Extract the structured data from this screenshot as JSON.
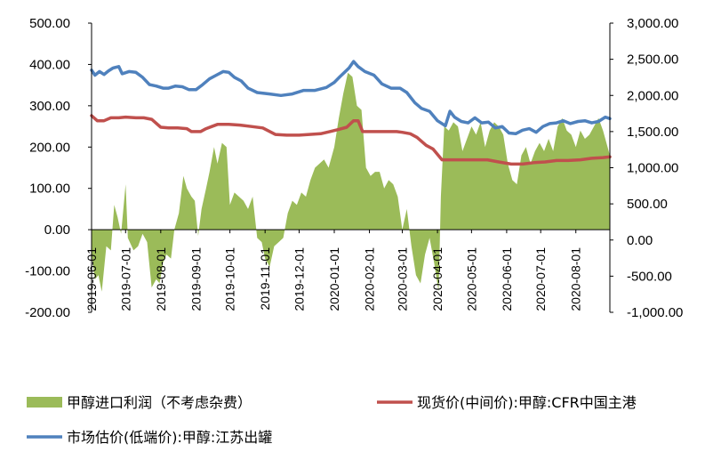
{
  "chart_data": {
    "type": "bar",
    "title": "",
    "x_tick_labels": [
      "2019-06-01",
      "2019-07-01",
      "2019-08-01",
      "2019-09-01",
      "2019-10-01",
      "2019-11-01",
      "2019-12-01",
      "2020-01-01",
      "2020-02-01",
      "2020-03-01",
      "2020-04-01",
      "2020-05-01",
      "2020-06-01",
      "2020-07-01",
      "2020-08-01"
    ],
    "x_range": [
      "2019-06-01",
      "2020-08-31"
    ],
    "y_left": {
      "range": [
        -200,
        500
      ],
      "ticks": [
        "500.00",
        "400.00",
        "300.00",
        "200.00",
        "100.00",
        "0.00",
        "-100.00",
        "-200.00"
      ]
    },
    "y_right": {
      "range": [
        -1000,
        3000
      ],
      "ticks": [
        "3,000.00",
        "2,500.00",
        "2,000.00",
        "1,500.00",
        "1,000.00",
        "500.00",
        "0.00",
        "-500.00",
        "-1,000.00"
      ]
    },
    "grid": false,
    "legend_position": "bottom",
    "series": [
      {
        "name": "甲醇进口利润（不考虑杂费）",
        "type": "area",
        "axis": "left",
        "color": "#9BBB59",
        "points": [
          [
            "2019-06-01",
            -60
          ],
          [
            "2019-06-04",
            -120
          ],
          [
            "2019-06-07",
            -110
          ],
          [
            "2019-06-10",
            -150
          ],
          [
            "2019-06-14",
            -40
          ],
          [
            "2019-06-18",
            -50
          ],
          [
            "2019-06-21",
            60
          ],
          [
            "2019-06-24",
            30
          ],
          [
            "2019-06-27",
            -10
          ],
          [
            "2019-07-01",
            110
          ],
          [
            "2019-07-03",
            -20
          ],
          [
            "2019-07-08",
            -50
          ],
          [
            "2019-07-12",
            -40
          ],
          [
            "2019-07-16",
            -10
          ],
          [
            "2019-07-20",
            -30
          ],
          [
            "2019-07-24",
            -140
          ],
          [
            "2019-07-28",
            -120
          ],
          [
            "2019-07-31",
            -130
          ],
          [
            "2019-08-03",
            -80
          ],
          [
            "2019-08-06",
            -60
          ],
          [
            "2019-08-10",
            -70
          ],
          [
            "2019-08-13",
            0
          ],
          [
            "2019-08-17",
            40
          ],
          [
            "2019-08-21",
            130
          ],
          [
            "2019-08-24",
            100
          ],
          [
            "2019-08-28",
            80
          ],
          [
            "2019-08-31",
            70
          ],
          [
            "2019-09-03",
            -15
          ],
          [
            "2019-09-06",
            50
          ],
          [
            "2019-09-10",
            100
          ],
          [
            "2019-09-13",
            140
          ],
          [
            "2019-09-17",
            200
          ],
          [
            "2019-09-20",
            160
          ],
          [
            "2019-09-24",
            210
          ],
          [
            "2019-09-28",
            200
          ],
          [
            "2019-10-01",
            60
          ],
          [
            "2019-10-05",
            90
          ],
          [
            "2019-10-09",
            80
          ],
          [
            "2019-10-13",
            70
          ],
          [
            "2019-10-17",
            50
          ],
          [
            "2019-10-21",
            80
          ],
          [
            "2019-10-25",
            -20
          ],
          [
            "2019-10-29",
            -30
          ],
          [
            "2019-11-01",
            -70
          ],
          [
            "2019-11-05",
            -90
          ],
          [
            "2019-11-09",
            -40
          ],
          [
            "2019-11-13",
            -30
          ],
          [
            "2019-11-17",
            -20
          ],
          [
            "2019-11-21",
            40
          ],
          [
            "2019-11-25",
            70
          ],
          [
            "2019-11-29",
            60
          ],
          [
            "2019-12-03",
            90
          ],
          [
            "2019-12-07",
            80
          ],
          [
            "2019-12-11",
            120
          ],
          [
            "2019-12-15",
            150
          ],
          [
            "2019-12-19",
            160
          ],
          [
            "2019-12-23",
            170
          ],
          [
            "2019-12-27",
            150
          ],
          [
            "2020-01-01",
            200
          ],
          [
            "2020-01-05",
            270
          ],
          [
            "2020-01-09",
            330
          ],
          [
            "2020-01-13",
            380
          ],
          [
            "2020-01-17",
            370
          ],
          [
            "2020-01-21",
            300
          ],
          [
            "2020-01-25",
            290
          ],
          [
            "2020-01-29",
            150
          ],
          [
            "2020-02-02",
            130
          ],
          [
            "2020-02-06",
            140
          ],
          [
            "2020-02-10",
            140
          ],
          [
            "2020-02-14",
            100
          ],
          [
            "2020-02-18",
            120
          ],
          [
            "2020-02-22",
            110
          ],
          [
            "2020-02-26",
            80
          ],
          [
            "2020-03-01",
            0
          ],
          [
            "2020-03-05",
            50
          ],
          [
            "2020-03-09",
            -40
          ],
          [
            "2020-03-13",
            -110
          ],
          [
            "2020-03-17",
            -130
          ],
          [
            "2020-03-21",
            -60
          ],
          [
            "2020-03-25",
            -20
          ],
          [
            "2020-03-29",
            -80
          ],
          [
            "2020-04-02",
            -150
          ],
          [
            "2020-04-04",
            80
          ],
          [
            "2020-04-07",
            250
          ],
          [
            "2020-04-11",
            240
          ],
          [
            "2020-04-15",
            260
          ],
          [
            "2020-04-19",
            250
          ],
          [
            "2020-04-23",
            190
          ],
          [
            "2020-04-27",
            220
          ],
          [
            "2020-05-01",
            250
          ],
          [
            "2020-05-05",
            230
          ],
          [
            "2020-05-09",
            260
          ],
          [
            "2020-05-13",
            200
          ],
          [
            "2020-05-17",
            240
          ],
          [
            "2020-05-21",
            260
          ],
          [
            "2020-05-25",
            250
          ],
          [
            "2020-05-29",
            230
          ],
          [
            "2020-06-02",
            160
          ],
          [
            "2020-06-06",
            120
          ],
          [
            "2020-06-10",
            110
          ],
          [
            "2020-06-14",
            180
          ],
          [
            "2020-06-18",
            200
          ],
          [
            "2020-06-22",
            160
          ],
          [
            "2020-06-26",
            190
          ],
          [
            "2020-06-30",
            210
          ],
          [
            "2020-07-04",
            190
          ],
          [
            "2020-07-08",
            220
          ],
          [
            "2020-07-12",
            190
          ],
          [
            "2020-07-16",
            250
          ],
          [
            "2020-07-20",
            270
          ],
          [
            "2020-07-24",
            240
          ],
          [
            "2020-07-28",
            230
          ],
          [
            "2020-08-01",
            200
          ],
          [
            "2020-08-05",
            240
          ],
          [
            "2020-08-09",
            220
          ],
          [
            "2020-08-13",
            230
          ],
          [
            "2020-08-17",
            250
          ],
          [
            "2020-08-21",
            270
          ],
          [
            "2020-08-25",
            240
          ],
          [
            "2020-08-31",
            180
          ]
        ]
      },
      {
        "name": "现货价(中间价):甲醇:CFR中国主港",
        "type": "line",
        "axis": "right",
        "color": "#C0504D",
        "points": [
          [
            "2019-06-01",
            1720
          ],
          [
            "2019-06-06",
            1650
          ],
          [
            "2019-06-12",
            1650
          ],
          [
            "2019-06-18",
            1690
          ],
          [
            "2019-06-25",
            1690
          ],
          [
            "2019-07-01",
            1700
          ],
          [
            "2019-07-10",
            1690
          ],
          [
            "2019-07-17",
            1690
          ],
          [
            "2019-07-24",
            1670
          ],
          [
            "2019-08-01",
            1560
          ],
          [
            "2019-08-08",
            1550
          ],
          [
            "2019-08-16",
            1550
          ],
          [
            "2019-08-24",
            1540
          ],
          [
            "2019-08-28",
            1500
          ],
          [
            "2019-09-05",
            1500
          ],
          [
            "2019-09-10",
            1540
          ],
          [
            "2019-09-15",
            1570
          ],
          [
            "2019-09-20",
            1600
          ],
          [
            "2019-09-30",
            1600
          ],
          [
            "2019-10-10",
            1590
          ],
          [
            "2019-10-20",
            1570
          ],
          [
            "2019-10-30",
            1550
          ],
          [
            "2019-11-10",
            1460
          ],
          [
            "2019-11-20",
            1450
          ],
          [
            "2019-12-01",
            1450
          ],
          [
            "2019-12-10",
            1460
          ],
          [
            "2019-12-20",
            1470
          ],
          [
            "2019-12-28",
            1500
          ],
          [
            "2020-01-05",
            1530
          ],
          [
            "2020-01-12",
            1560
          ],
          [
            "2020-01-18",
            1650
          ],
          [
            "2020-01-22",
            1650
          ],
          [
            "2020-01-26",
            1500
          ],
          [
            "2020-02-05",
            1500
          ],
          [
            "2020-02-15",
            1500
          ],
          [
            "2020-02-25",
            1500
          ],
          [
            "2020-03-01",
            1490
          ],
          [
            "2020-03-08",
            1470
          ],
          [
            "2020-03-14",
            1420
          ],
          [
            "2020-03-22",
            1310
          ],
          [
            "2020-03-28",
            1260
          ],
          [
            "2020-04-05",
            1110
          ],
          [
            "2020-04-15",
            1110
          ],
          [
            "2020-04-25",
            1110
          ],
          [
            "2020-05-05",
            1110
          ],
          [
            "2020-05-15",
            1110
          ],
          [
            "2020-05-25",
            1080
          ],
          [
            "2020-06-05",
            1050
          ],
          [
            "2020-06-15",
            1050
          ],
          [
            "2020-06-25",
            1070
          ],
          [
            "2020-07-05",
            1080
          ],
          [
            "2020-07-15",
            1100
          ],
          [
            "2020-07-25",
            1100
          ],
          [
            "2020-08-05",
            1110
          ],
          [
            "2020-08-15",
            1130
          ],
          [
            "2020-08-25",
            1140
          ],
          [
            "2020-08-31",
            1150
          ]
        ]
      },
      {
        "name": "市场估价(低端价):甲醇:江苏出罐",
        "type": "line",
        "axis": "right",
        "color": "#4F81BD",
        "points": [
          [
            "2019-06-01",
            2350
          ],
          [
            "2019-06-04",
            2280
          ],
          [
            "2019-06-08",
            2330
          ],
          [
            "2019-06-12",
            2290
          ],
          [
            "2019-06-16",
            2340
          ],
          [
            "2019-06-20",
            2380
          ],
          [
            "2019-06-25",
            2400
          ],
          [
            "2019-06-28",
            2300
          ],
          [
            "2019-07-04",
            2330
          ],
          [
            "2019-07-10",
            2320
          ],
          [
            "2019-07-16",
            2250
          ],
          [
            "2019-07-22",
            2150
          ],
          [
            "2019-07-28",
            2130
          ],
          [
            "2019-08-03",
            2100
          ],
          [
            "2019-08-08",
            2100
          ],
          [
            "2019-08-14",
            2130
          ],
          [
            "2019-08-20",
            2120
          ],
          [
            "2019-08-26",
            2080
          ],
          [
            "2019-09-01",
            2080
          ],
          [
            "2019-09-07",
            2150
          ],
          [
            "2019-09-13",
            2230
          ],
          [
            "2019-09-19",
            2280
          ],
          [
            "2019-09-25",
            2330
          ],
          [
            "2019-09-30",
            2320
          ],
          [
            "2019-10-05",
            2250
          ],
          [
            "2019-10-11",
            2200
          ],
          [
            "2019-10-17",
            2100
          ],
          [
            "2019-10-25",
            2040
          ],
          [
            "2019-11-05",
            2020
          ],
          [
            "2019-11-15",
            2000
          ],
          [
            "2019-11-25",
            2020
          ],
          [
            "2019-12-05",
            2070
          ],
          [
            "2019-12-15",
            2070
          ],
          [
            "2019-12-25",
            2110
          ],
          [
            "2020-01-01",
            2180
          ],
          [
            "2020-01-06",
            2260
          ],
          [
            "2020-01-10",
            2320
          ],
          [
            "2020-01-14",
            2380
          ],
          [
            "2020-01-18",
            2470
          ],
          [
            "2020-01-22",
            2400
          ],
          [
            "2020-01-28",
            2330
          ],
          [
            "2020-02-05",
            2280
          ],
          [
            "2020-02-12",
            2160
          ],
          [
            "2020-02-20",
            2100
          ],
          [
            "2020-02-28",
            2100
          ],
          [
            "2020-03-05",
            2040
          ],
          [
            "2020-03-12",
            1900
          ],
          [
            "2020-03-18",
            1820
          ],
          [
            "2020-03-25",
            1780
          ],
          [
            "2020-04-01",
            1650
          ],
          [
            "2020-04-08",
            1580
          ],
          [
            "2020-04-12",
            1780
          ],
          [
            "2020-04-16",
            1700
          ],
          [
            "2020-04-22",
            1640
          ],
          [
            "2020-04-28",
            1620
          ],
          [
            "2020-05-04",
            1690
          ],
          [
            "2020-05-10",
            1620
          ],
          [
            "2020-05-16",
            1630
          ],
          [
            "2020-05-22",
            1550
          ],
          [
            "2020-05-28",
            1570
          ],
          [
            "2020-06-03",
            1480
          ],
          [
            "2020-06-09",
            1470
          ],
          [
            "2020-06-15",
            1520
          ],
          [
            "2020-06-21",
            1540
          ],
          [
            "2020-06-27",
            1490
          ],
          [
            "2020-07-03",
            1570
          ],
          [
            "2020-07-09",
            1610
          ],
          [
            "2020-07-15",
            1620
          ],
          [
            "2020-07-21",
            1650
          ],
          [
            "2020-07-27",
            1610
          ],
          [
            "2020-08-03",
            1640
          ],
          [
            "2020-08-09",
            1650
          ],
          [
            "2020-08-15",
            1620
          ],
          [
            "2020-08-21",
            1640
          ],
          [
            "2020-08-27",
            1700
          ],
          [
            "2020-08-31",
            1680
          ]
        ]
      }
    ]
  }
}
